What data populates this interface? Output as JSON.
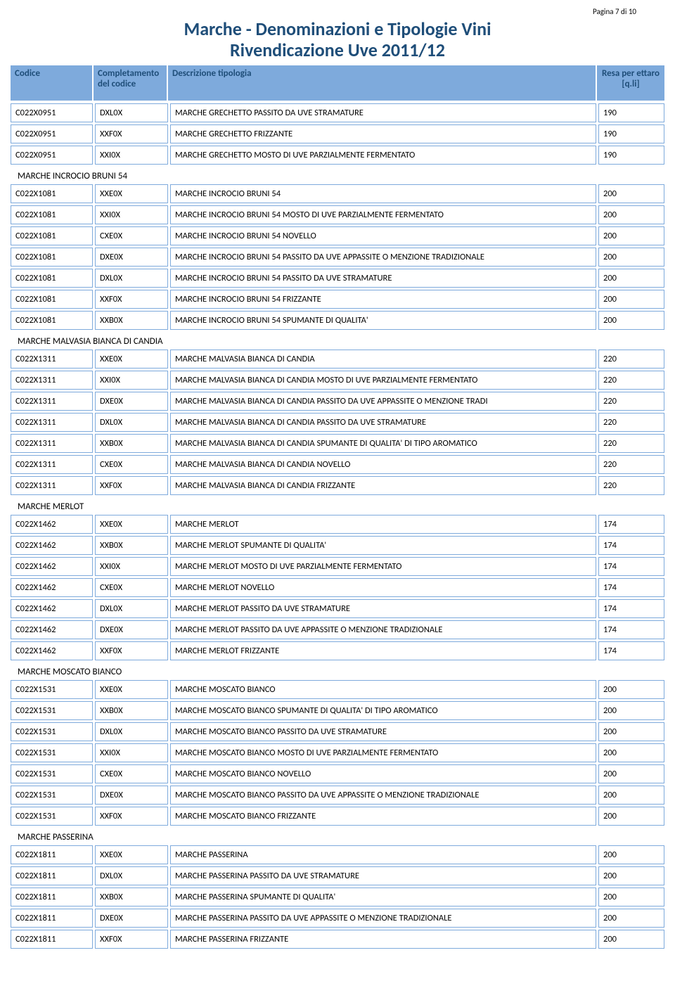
{
  "pageNumber": "Pagina 7 di 10",
  "titleLine1": "Marche - Denominazioni e Tipologie Vini",
  "titleLine2": "Rivendicazione Uve 2011/12",
  "columns": {
    "codice": "Codice",
    "completamento": "Completamento del codice",
    "descrizione": "Descrizione tipologia",
    "resa": "Resa per ettaro [q.li]"
  },
  "sections": [
    {
      "title": null,
      "rows": [
        {
          "cod": "C022X0951",
          "compl": "DXL0X",
          "descr": "MARCHE GRECHETTO PASSITO DA UVE STRAMATURE",
          "resa": "190"
        },
        {
          "cod": "C022X0951",
          "compl": "XXF0X",
          "descr": "MARCHE GRECHETTO FRIZZANTE",
          "resa": "190"
        },
        {
          "cod": "C022X0951",
          "compl": "XXI0X",
          "descr": "MARCHE GRECHETTO MOSTO DI UVE PARZIALMENTE FERMENTATO",
          "resa": "190"
        }
      ]
    },
    {
      "title": "MARCHE INCROCIO BRUNI 54",
      "rows": [
        {
          "cod": "C022X1081",
          "compl": "XXE0X",
          "descr": "MARCHE INCROCIO BRUNI 54",
          "resa": "200"
        },
        {
          "cod": "C022X1081",
          "compl": "XXI0X",
          "descr": "MARCHE INCROCIO BRUNI 54 MOSTO DI UVE PARZIALMENTE FERMENTATO",
          "resa": "200"
        },
        {
          "cod": "C022X1081",
          "compl": "CXE0X",
          "descr": "MARCHE INCROCIO BRUNI 54 NOVELLO",
          "resa": "200"
        },
        {
          "cod": "C022X1081",
          "compl": "DXE0X",
          "descr": "MARCHE INCROCIO BRUNI 54 PASSITO  DA UVE APPASSITE O MENZIONE TRADIZIONALE",
          "resa": "200"
        },
        {
          "cod": "C022X1081",
          "compl": "DXL0X",
          "descr": "MARCHE INCROCIO BRUNI 54 PASSITO DA UVE STRAMATURE",
          "resa": "200"
        },
        {
          "cod": "C022X1081",
          "compl": "XXF0X",
          "descr": "MARCHE INCROCIO BRUNI 54 FRIZZANTE",
          "resa": "200"
        },
        {
          "cod": "C022X1081",
          "compl": "XXB0X",
          "descr": "MARCHE INCROCIO BRUNI 54 SPUMANTE DI QUALITA'",
          "resa": "200"
        }
      ]
    },
    {
      "title": "MARCHE MALVASIA BIANCA DI CANDIA",
      "rows": [
        {
          "cod": "C022X1311",
          "compl": "XXE0X",
          "descr": "MARCHE MALVASIA BIANCA DI CANDIA",
          "resa": "220"
        },
        {
          "cod": "C022X1311",
          "compl": "XXI0X",
          "descr": "MARCHE MALVASIA BIANCA DI CANDIA MOSTO DI UVE PARZIALMENTE FERMENTATO",
          "resa": "220"
        },
        {
          "cod": "C022X1311",
          "compl": "DXE0X",
          "descr": "MARCHE MALVASIA BIANCA DI CANDIA PASSITO  DA UVE APPASSITE O MENZIONE TRADI",
          "resa": "220"
        },
        {
          "cod": "C022X1311",
          "compl": "DXL0X",
          "descr": "MARCHE MALVASIA BIANCA DI CANDIA PASSITO DA UVE STRAMATURE",
          "resa": "220"
        },
        {
          "cod": "C022X1311",
          "compl": "XXB0X",
          "descr": "MARCHE MALVASIA BIANCA DI CANDIA SPUMANTE DI QUALITA' DI TIPO AROMATICO",
          "resa": "220"
        },
        {
          "cod": "C022X1311",
          "compl": "CXE0X",
          "descr": "MARCHE MALVASIA BIANCA DI CANDIA NOVELLO",
          "resa": "220"
        },
        {
          "cod": "C022X1311",
          "compl": "XXF0X",
          "descr": "MARCHE MALVASIA BIANCA DI CANDIA FRIZZANTE",
          "resa": "220"
        }
      ]
    },
    {
      "title": "MARCHE MERLOT",
      "rows": [
        {
          "cod": "C022X1462",
          "compl": "XXE0X",
          "descr": "MARCHE MERLOT",
          "resa": "174"
        },
        {
          "cod": "C022X1462",
          "compl": "XXB0X",
          "descr": "MARCHE MERLOT SPUMANTE DI QUALITA'",
          "resa": "174"
        },
        {
          "cod": "C022X1462",
          "compl": "XXI0X",
          "descr": "MARCHE MERLOT MOSTO DI UVE PARZIALMENTE FERMENTATO",
          "resa": "174"
        },
        {
          "cod": "C022X1462",
          "compl": "CXE0X",
          "descr": "MARCHE MERLOT NOVELLO",
          "resa": "174"
        },
        {
          "cod": "C022X1462",
          "compl": "DXL0X",
          "descr": "MARCHE MERLOT PASSITO DA UVE STRAMATURE",
          "resa": "174"
        },
        {
          "cod": "C022X1462",
          "compl": "DXE0X",
          "descr": "MARCHE MERLOT PASSITO  DA UVE APPASSITE O MENZIONE TRADIZIONALE",
          "resa": "174"
        },
        {
          "cod": "C022X1462",
          "compl": "XXF0X",
          "descr": "MARCHE MERLOT FRIZZANTE",
          "resa": "174"
        }
      ]
    },
    {
      "title": "MARCHE MOSCATO BIANCO",
      "rows": [
        {
          "cod": "C022X1531",
          "compl": "XXE0X",
          "descr": "MARCHE MOSCATO BIANCO",
          "resa": "200"
        },
        {
          "cod": "C022X1531",
          "compl": "XXB0X",
          "descr": "MARCHE MOSCATO BIANCO SPUMANTE DI QUALITA' DI TIPO AROMATICO",
          "resa": "200"
        },
        {
          "cod": "C022X1531",
          "compl": "DXL0X",
          "descr": "MARCHE MOSCATO BIANCO PASSITO DA UVE STRAMATURE",
          "resa": "200"
        },
        {
          "cod": "C022X1531",
          "compl": "XXI0X",
          "descr": "MARCHE MOSCATO BIANCO MOSTO DI UVE PARZIALMENTE FERMENTATO",
          "resa": "200"
        },
        {
          "cod": "C022X1531",
          "compl": "CXE0X",
          "descr": "MARCHE MOSCATO BIANCO NOVELLO",
          "resa": "200"
        },
        {
          "cod": "C022X1531",
          "compl": "DXE0X",
          "descr": "MARCHE MOSCATO BIANCO PASSITO  DA UVE APPASSITE O MENZIONE TRADIZIONALE",
          "resa": "200"
        },
        {
          "cod": "C022X1531",
          "compl": "XXF0X",
          "descr": "MARCHE MOSCATO BIANCO FRIZZANTE",
          "resa": "200"
        }
      ]
    },
    {
      "title": "MARCHE PASSERINA",
      "rows": [
        {
          "cod": "C022X1811",
          "compl": "XXE0X",
          "descr": "MARCHE PASSERINA",
          "resa": "200"
        },
        {
          "cod": "C022X1811",
          "compl": "DXL0X",
          "descr": "MARCHE PASSERINA PASSITO DA UVE STRAMATURE",
          "resa": "200"
        },
        {
          "cod": "C022X1811",
          "compl": "XXB0X",
          "descr": "MARCHE PASSERINA SPUMANTE DI QUALITA'",
          "resa": "200"
        },
        {
          "cod": "C022X1811",
          "compl": "DXE0X",
          "descr": "MARCHE PASSERINA PASSITO  DA UVE APPASSITE O MENZIONE TRADIZIONALE",
          "resa": "200"
        },
        {
          "cod": "C022X1811",
          "compl": "XXF0X",
          "descr": "MARCHE PASSERINA FRIZZANTE",
          "resa": "200"
        }
      ]
    }
  ]
}
